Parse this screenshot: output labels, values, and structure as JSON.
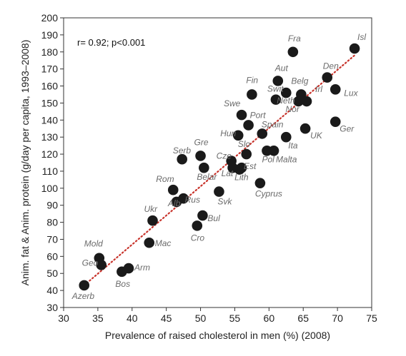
{
  "chart_data": {
    "type": "scatter",
    "xlabel": "Prevalence of raised cholesterol in men (%) (2008)",
    "ylabel": "Anim. fat & Anim. protein (g/day per capita, 1993–2008)",
    "xlim": [
      30,
      75
    ],
    "ylim": [
      30,
      200
    ],
    "xticks": [
      30,
      35,
      40,
      45,
      50,
      55,
      60,
      65,
      70,
      75
    ],
    "yticks": [
      30,
      40,
      50,
      60,
      70,
      80,
      90,
      100,
      110,
      120,
      130,
      140,
      150,
      160,
      170,
      180,
      190,
      200
    ],
    "annotation": "r= 0.92; p<0.001",
    "grid": false,
    "point_color": "#1a1a1a",
    "trend_color": "#c8332b",
    "trendline": {
      "style": "dotted",
      "x": [
        33,
        72.5
      ],
      "y": [
        43,
        178
      ]
    },
    "points": [
      {
        "label": "Azerb",
        "x": 33.0,
        "y": 43
      },
      {
        "label": "Geo",
        "x": 35.5,
        "y": 55
      },
      {
        "label": "Mold",
        "x": 35.2,
        "y": 59
      },
      {
        "label": "Bos",
        "x": 38.5,
        "y": 51
      },
      {
        "label": "Arm",
        "x": 39.5,
        "y": 53
      },
      {
        "label": "Mac",
        "x": 42.5,
        "y": 68
      },
      {
        "label": "Ukr",
        "x": 43.0,
        "y": 81
      },
      {
        "label": "Alb",
        "x": 46.5,
        "y": 92
      },
      {
        "label": "Rus",
        "x": 47.5,
        "y": 94
      },
      {
        "label": "Rom",
        "x": 46.0,
        "y": 99
      },
      {
        "label": "Serb",
        "x": 47.3,
        "y": 117
      },
      {
        "label": "Cro",
        "x": 49.5,
        "y": 78
      },
      {
        "label": "Bul",
        "x": 50.3,
        "y": 84
      },
      {
        "label": "Svk",
        "x": 52.7,
        "y": 98
      },
      {
        "label": "Gre",
        "x": 50.0,
        "y": 119
      },
      {
        "label": "Belar",
        "x": 50.5,
        "y": 112
      },
      {
        "label": "Lat",
        "x": 54.7,
        "y": 112
      },
      {
        "label": "Lith",
        "x": 55.7,
        "y": 111
      },
      {
        "label": "Est",
        "x": 56.0,
        "y": 112
      },
      {
        "label": "Cze",
        "x": 54.5,
        "y": 116
      },
      {
        "label": "Slo",
        "x": 56.7,
        "y": 120
      },
      {
        "label": "Hun",
        "x": 55.5,
        "y": 131
      },
      {
        "label": "Cyprus",
        "x": 58.7,
        "y": 103
      },
      {
        "label": "Pol",
        "x": 59.7,
        "y": 122
      },
      {
        "label": "Malta",
        "x": 60.7,
        "y": 122
      },
      {
        "label": "Port",
        "x": 57.0,
        "y": 137
      },
      {
        "label": "Spain",
        "x": 59.0,
        "y": 132
      },
      {
        "label": "Swe",
        "x": 56.0,
        "y": 143
      },
      {
        "label": "Fin",
        "x": 57.5,
        "y": 155
      },
      {
        "label": "Ita",
        "x": 62.5,
        "y": 130
      },
      {
        "label": "UK",
        "x": 65.3,
        "y": 135
      },
      {
        "label": "Swit",
        "x": 61.0,
        "y": 152
      },
      {
        "label": "Neth",
        "x": 62.5,
        "y": 156
      },
      {
        "label": "Aut",
        "x": 61.3,
        "y": 163
      },
      {
        "label": "Nor",
        "x": 64.3,
        "y": 151
      },
      {
        "label": "Belg",
        "x": 64.7,
        "y": 155
      },
      {
        "label": "Irl",
        "x": 65.5,
        "y": 151
      },
      {
        "label": "Fra",
        "x": 63.5,
        "y": 180
      },
      {
        "label": "Den",
        "x": 68.5,
        "y": 165
      },
      {
        "label": "Lux",
        "x": 69.7,
        "y": 158
      },
      {
        "label": "Ger",
        "x": 69.7,
        "y": 139
      },
      {
        "label": "Isl",
        "x": 72.5,
        "y": 182
      }
    ]
  }
}
